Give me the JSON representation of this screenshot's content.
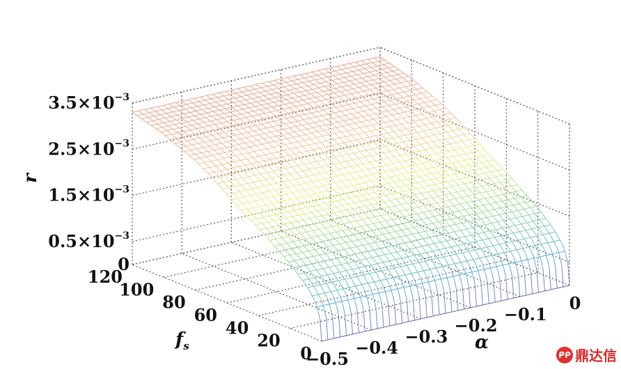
{
  "chart_data": {
    "type": "surface3d",
    "z_label": "r",
    "x_label": "α",
    "y_label": "f",
    "y_label_subscript": "s",
    "z_ticks": [
      {
        "value": 0,
        "mantissa": "0",
        "exp": ""
      },
      {
        "value": 0.0005,
        "mantissa": "0.5×10",
        "exp": "−3"
      },
      {
        "value": 0.0015,
        "mantissa": "1.5×10",
        "exp": "−3"
      },
      {
        "value": 0.0025,
        "mantissa": "2.5×10",
        "exp": "−3"
      },
      {
        "value": 0.0035,
        "mantissa": "3.5×10",
        "exp": "−3"
      }
    ],
    "alpha_ticks": [
      {
        "value": -0.5,
        "label": "−0.5"
      },
      {
        "value": -0.4,
        "label": "−0.4"
      },
      {
        "value": -0.3,
        "label": "−0.3"
      },
      {
        "value": -0.2,
        "label": "−0.2"
      },
      {
        "value": -0.1,
        "label": "−0.1"
      },
      {
        "value": 0,
        "label": "0"
      }
    ],
    "fs_ticks": [
      {
        "value": 0,
        "label": "0"
      },
      {
        "value": 20,
        "label": "20"
      },
      {
        "value": 40,
        "label": "40"
      },
      {
        "value": 60,
        "label": "60"
      },
      {
        "value": 80,
        "label": "80"
      },
      {
        "value": 100,
        "label": "100"
      },
      {
        "value": 120,
        "label": "120"
      }
    ],
    "alpha_range": [
      -0.5,
      0
    ],
    "fs_range": [
      0,
      120
    ],
    "z_range": [
      0,
      0.0035
    ],
    "fs_samples": [
      0,
      1,
      2,
      4,
      8,
      12,
      20,
      30,
      40,
      50,
      60,
      70,
      80,
      90,
      100,
      110,
      120
    ],
    "r_values": [
      0,
      0.00045,
      0.0006,
      0.0008,
      0.001,
      0.00115,
      0.0014,
      0.00165,
      0.0019,
      0.0021,
      0.00235,
      0.0026,
      0.0028,
      0.00295,
      0.0031,
      0.0032,
      0.0033
    ],
    "alpha_dependence": "none",
    "grid": true,
    "colormap": [
      "#7b6fc0",
      "#5eb0d8",
      "#8fd6a2",
      "#f0f08a",
      "#f3c0a0",
      "#e69a8a"
    ]
  },
  "watermark": {
    "logo": "ᑭᑭ",
    "text": "鼎达信"
  }
}
